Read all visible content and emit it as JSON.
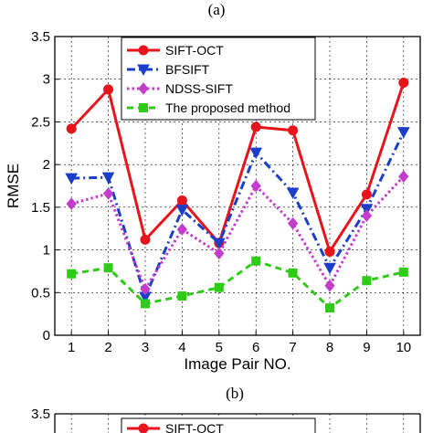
{
  "captions": {
    "top": "(a)",
    "bottom": "(b)"
  },
  "chart_data": [
    {
      "type": "line",
      "xlabel": "Image Pair NO.",
      "ylabel": "RMSE",
      "x": [
        1,
        2,
        3,
        4,
        5,
        6,
        7,
        8,
        9,
        10
      ],
      "xticks": [
        "1",
        "2",
        "3",
        "4",
        "5",
        "6",
        "7",
        "8",
        "9",
        "10"
      ],
      "ylim": [
        0,
        3.5
      ],
      "yticks": [
        "0",
        "0.5",
        "1",
        "1.5",
        "2",
        "2.5",
        "3",
        "3.5"
      ],
      "grid": true,
      "legend_position": "top-center",
      "series": [
        {
          "name": "SIFT-OCT",
          "color": "#e8141c",
          "linestyle": "solid",
          "marker": "circle",
          "values": [
            2.42,
            2.88,
            1.12,
            1.58,
            1.08,
            2.44,
            2.4,
            0.98,
            1.65,
            2.96
          ]
        },
        {
          "name": "BFSIFT",
          "color": "#1a3ec8",
          "linestyle": "dashdot",
          "marker": "triangle-down",
          "values": [
            1.84,
            1.85,
            0.45,
            1.47,
            1.08,
            2.14,
            1.67,
            0.79,
            1.48,
            2.38
          ]
        },
        {
          "name": "NDSS-SIFT",
          "color": "#c43ccc",
          "linestyle": "dotted",
          "marker": "diamond",
          "values": [
            1.54,
            1.66,
            0.54,
            1.24,
            0.96,
            1.75,
            1.31,
            0.58,
            1.4,
            1.86
          ]
        },
        {
          "name": "The proposed method",
          "color": "#2ecc17",
          "linestyle": "dashed",
          "marker": "square",
          "values": [
            0.72,
            0.79,
            0.37,
            0.46,
            0.56,
            0.87,
            0.73,
            0.32,
            0.64,
            0.74
          ]
        }
      ]
    },
    {
      "type": "line",
      "partial": true,
      "ylim": [
        0,
        3.5
      ],
      "yticks": [
        "3.5"
      ],
      "grid": true,
      "series": [
        {
          "name": "SIFT-OCT",
          "color": "#e8141c",
          "marker": "circle"
        }
      ]
    }
  ]
}
